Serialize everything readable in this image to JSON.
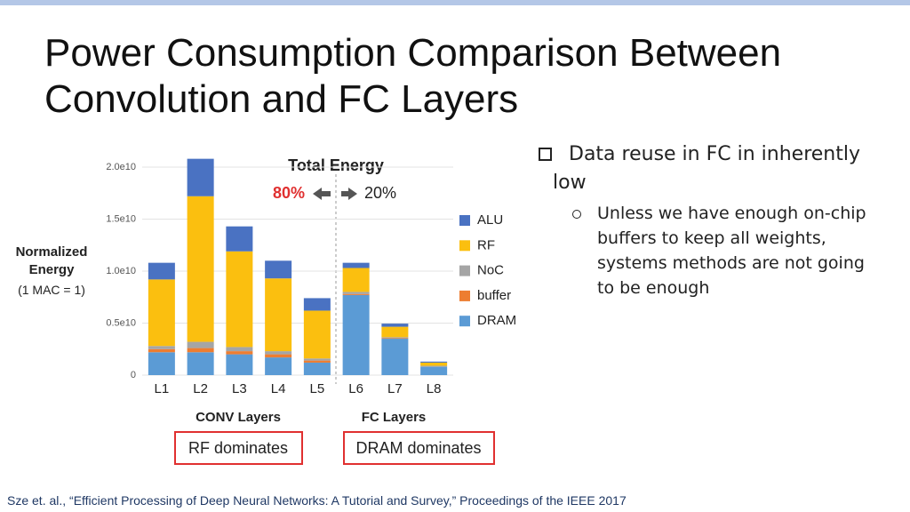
{
  "title": "Power Consumption Comparison Between Convolution and FC Layers",
  "bullets": [
    {
      "text": "Data reuse in FC in inherently low",
      "subbullets": [
        "Unless we have enough on-chip buffers to keep all weights, systems methods are not going to be enough"
      ]
    }
  ],
  "citation": "Sze et. al., “Efficient Processing of Deep Neural Networks: A Tutorial and Survey,” Proceedings of the IEEE 2017",
  "chart_data": {
    "type": "stacked_bar",
    "title": "Total Energy",
    "annotations": [
      "80%",
      "20%",
      "CONV Layers",
      "FC Layers",
      "RF dominates",
      "DRAM dominates"
    ],
    "ylabel": "Normalized Energy",
    "ylabel_note": "(1 MAC = 1)",
    "categories": [
      "L1",
      "L2",
      "L3",
      "L4",
      "L5",
      "L6",
      "L7",
      "L8"
    ],
    "series": [
      {
        "name": "ALU",
        "color": "#4a72c2",
        "values": [
          1600000000.0,
          3600000000.0,
          2400000000.0,
          1700000000.0,
          1200000000.0,
          500000000.0,
          300000000.0,
          100000000.0
        ]
      },
      {
        "name": "RF",
        "color": "#fbbf0f",
        "values": [
          6400000000.0,
          14000000000.0,
          9200000000.0,
          7000000000.0,
          4600000000.0,
          2300000000.0,
          1000000000.0,
          300000000.0
        ]
      },
      {
        "name": "NoC",
        "color": "#a5a5a5",
        "values": [
          300000000.0,
          600000000.0,
          400000000.0,
          300000000.0,
          200000000.0,
          200000000.0,
          100000000.0,
          100000000.0
        ]
      },
      {
        "name": "buffer",
        "color": "#ed7d31",
        "values": [
          300000000.0,
          400000000.0,
          300000000.0,
          300000000.0,
          200000000.0,
          100000000.0,
          50000000.0,
          0
        ]
      },
      {
        "name": "DRAM",
        "color": "#5b9bd5",
        "values": [
          2200000000.0,
          2200000000.0,
          2000000000.0,
          1700000000.0,
          1200000000.0,
          7700000000.0,
          3500000000.0,
          800000000.0
        ]
      }
    ],
    "ylim": [
      0,
      20000000000.0
    ],
    "yticks": [
      0,
      {
        "value": 5000000000.0,
        "label": "0.5e10"
      },
      {
        "value": 10000000000.0,
        "label": "1.0e10"
      },
      {
        "value": 15000000000.0,
        "label": "1.5e10"
      },
      {
        "value": 20000000000.0,
        "label": "2.0e10"
      }
    ],
    "grid": true,
    "legend": "right"
  }
}
